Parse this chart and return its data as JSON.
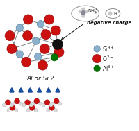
{
  "bg_color": "#ffffff",
  "si_color": "#8ab0cc",
  "o_color": "#cc1111",
  "al_color": "#007700",
  "black_color": "#111111",
  "bond_color": "#777777",
  "arrow_color": "#1a4fa0",
  "text_negative": "negative charge",
  "text_question": "Al or Si ?",
  "water_o_color": "#cc1111",
  "water_h_color": "#dddddd",
  "legend_items": [
    {
      "label": "Si$^{4+}$",
      "color": "#8ab0cc",
      "edge": "#4a7a9b"
    },
    {
      "label": "O$^{2-}$",
      "color": "#cc1111",
      "edge": "#880000"
    },
    {
      "label": "Al$^{3+}$",
      "color": "#007700",
      "edge": "#004400"
    }
  ]
}
